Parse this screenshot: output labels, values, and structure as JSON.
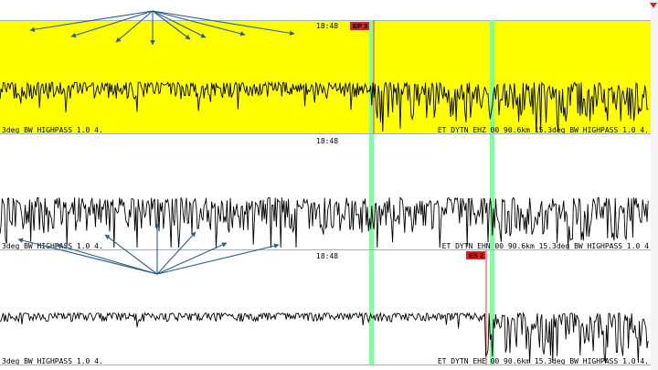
{
  "colors": {
    "highlight_panel": "#ffff00",
    "panel_background": "#ffffff",
    "separator": "#a0b0c0",
    "pick_marker": "#7dffa0",
    "pick_flag": "#e02020",
    "annotation_arrow": "#2a5f86",
    "waveform": "#000000",
    "waveform_shadow": "#6a6a6a"
  },
  "corner_marker_icon": "red-triangle-down",
  "traces": [
    {
      "time_label": "18:48",
      "pick_label": "EP 3",
      "channel_label_left": "3deg BW_HIGHPASS 1.0  4.",
      "channel_label_right": "ET DYTN EHZ 00 90.6km 15.3deg BW_HIGHPASS 1.0  4.",
      "highlighted": true,
      "amplitude_level": 0.45
    },
    {
      "time_label": "18:48",
      "pick_label": "",
      "channel_label_left": "3deg BW_HIGHPASS 1.0  4.",
      "channel_label_right": "ET DYTN EHN 00 90.6km 15.3deg BW_HIGHPASS 1.0  4",
      "highlighted": false,
      "amplitude_level": 0.6
    },
    {
      "time_label": "18:48",
      "pick_label": "ES 2",
      "channel_label_left": "3deg BW_HIGHPASS 1.0  4.",
      "channel_label_right": "ET DYTN EHE 00 90.6km 15.3deg BW_HIGHPASS 1.0  4.",
      "highlighted": false,
      "amplitude_level": 0.25
    }
  ]
}
